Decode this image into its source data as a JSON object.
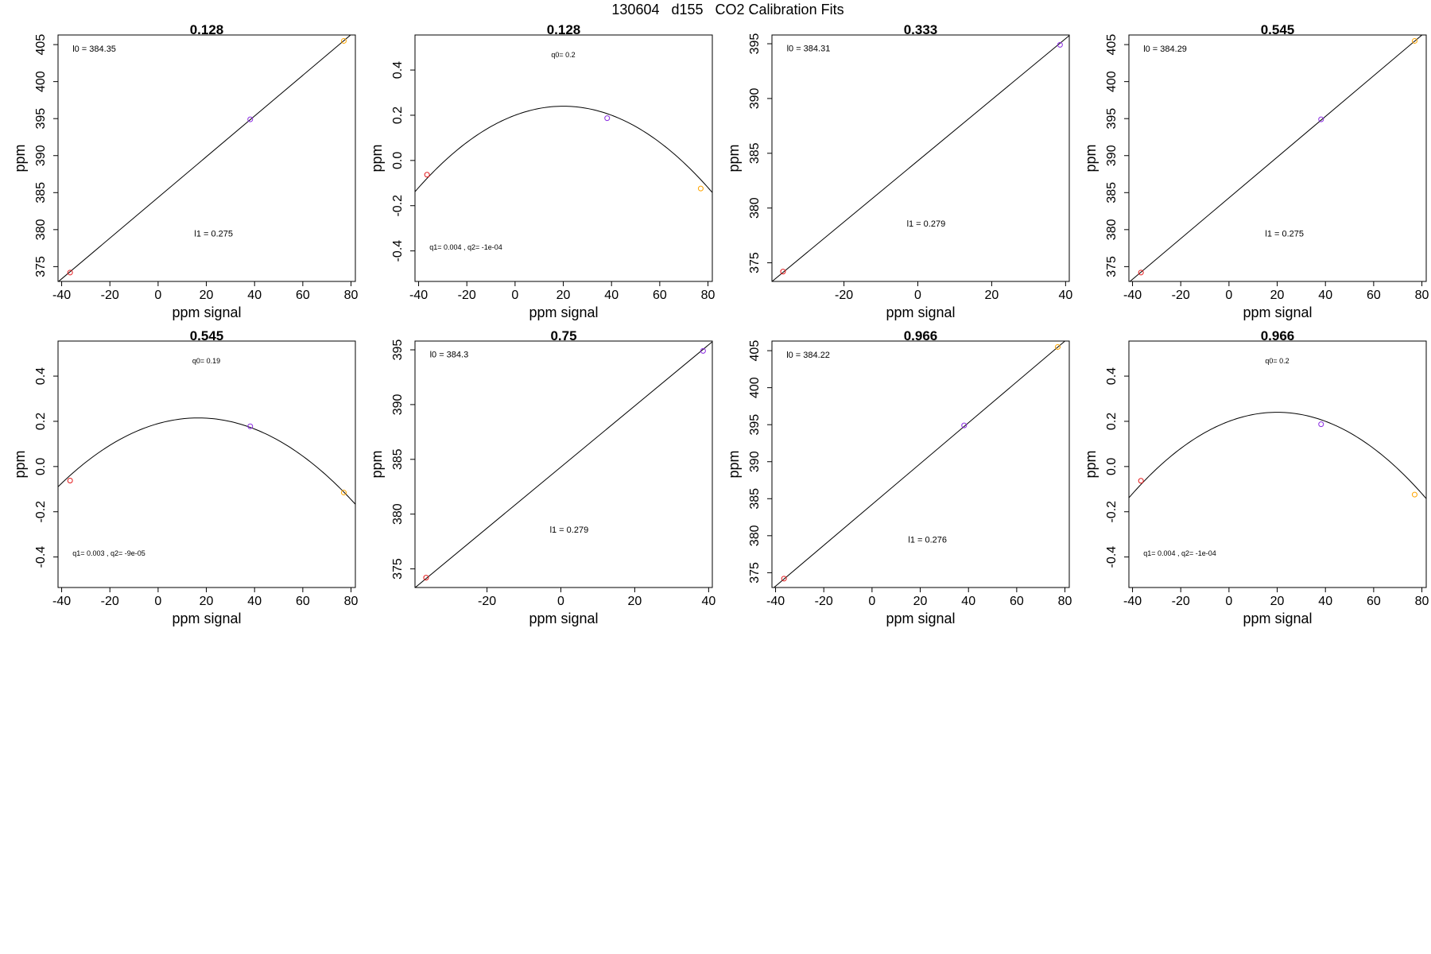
{
  "figure": {
    "title": "130604   d155   CO2 Calibration Fits"
  },
  "chart_data": [
    {
      "type": "scatter",
      "fit": "linear",
      "title": "0.128",
      "xlabel": "ppm signal",
      "ylabel": "ppm",
      "xlim": [
        -41.5,
        81.8
      ],
      "ylim": [
        373.0,
        406.3
      ],
      "xticks": [
        -40,
        -20,
        0,
        20,
        40,
        60,
        80
      ],
      "yticks": [
        375,
        380,
        385,
        390,
        395,
        400,
        405
      ],
      "points": [
        {
          "x": -36.5,
          "y": 374.2,
          "color": "#e41a1c"
        },
        {
          "x": 38.2,
          "y": 394.9,
          "color": "#8a2be2"
        },
        {
          "x": 77.0,
          "y": 405.5,
          "color": "#ffa500"
        }
      ],
      "line": {
        "intercept": 384.35,
        "slope": 0.275
      },
      "annotations": [
        {
          "text": "l0 =  384.35",
          "x": -35.5,
          "y": 404.5,
          "size": "small"
        },
        {
          "text": "l1 =  0.275",
          "x": 15,
          "y": 379.5,
          "size": "small"
        }
      ]
    },
    {
      "type": "scatter",
      "fit": "quadratic",
      "title": "0.128",
      "xlabel": "ppm signal",
      "ylabel": "ppm",
      "xlim": [
        -41.5,
        81.8
      ],
      "ylim": [
        -0.535,
        0.555
      ],
      "xticks": [
        -40,
        -20,
        0,
        20,
        40,
        60,
        80
      ],
      "yticks": [
        -0.4,
        -0.2,
        0.0,
        0.2,
        0.4
      ],
      "points": [
        {
          "x": -36.5,
          "y": -0.063,
          "color": "#e41a1c"
        },
        {
          "x": 38.2,
          "y": 0.187,
          "color": "#8a2be2"
        },
        {
          "x": 77.0,
          "y": -0.124,
          "color": "#ffa500"
        }
      ],
      "curve": {
        "q0": 0.2,
        "q1": 0.004,
        "q2": -0.0001
      },
      "annotations": [
        {
          "text": "q0= 0.2",
          "x": 20,
          "y": 0.47,
          "size": "tiny"
        },
        {
          "text": "q1= 0.004 , q2= -1e-04",
          "x": -35.5,
          "y": -0.38,
          "size": "tiny"
        }
      ]
    },
    {
      "type": "scatter",
      "fit": "linear",
      "title": "0.333",
      "xlabel": "ppm signal",
      "ylabel": "ppm",
      "xlim": [
        -39.5,
        41.0
      ],
      "ylim": [
        373.3,
        395.8
      ],
      "xticks": [
        -20,
        0,
        20,
        40
      ],
      "yticks": [
        375,
        380,
        385,
        390,
        395
      ],
      "points": [
        {
          "x": -36.5,
          "y": 374.2,
          "color": "#e41a1c"
        },
        {
          "x": 38.5,
          "y": 394.9,
          "color": "#8a2be2"
        }
      ],
      "line": {
        "intercept": 384.31,
        "slope": 0.279
      },
      "annotations": [
        {
          "text": "l0 =  384.31",
          "x": -35.5,
          "y": 394.6,
          "size": "small"
        },
        {
          "text": "l1 =  0.279",
          "x": -3,
          "y": 378.6,
          "size": "small"
        }
      ]
    },
    {
      "type": "scatter",
      "fit": "linear",
      "title": "0.545",
      "xlabel": "ppm signal",
      "ylabel": "ppm",
      "xlim": [
        -41.5,
        81.8
      ],
      "ylim": [
        373.0,
        406.3
      ],
      "xticks": [
        -40,
        -20,
        0,
        20,
        40,
        60,
        80
      ],
      "yticks": [
        375,
        380,
        385,
        390,
        395,
        400,
        405
      ],
      "points": [
        {
          "x": -36.5,
          "y": 374.2,
          "color": "#e41a1c"
        },
        {
          "x": 38.2,
          "y": 394.9,
          "color": "#8a2be2"
        },
        {
          "x": 77.0,
          "y": 405.5,
          "color": "#ffa500"
        }
      ],
      "line": {
        "intercept": 384.29,
        "slope": 0.275
      },
      "annotations": [
        {
          "text": "l0 =  384.29",
          "x": -35.5,
          "y": 404.5,
          "size": "small"
        },
        {
          "text": "l1 =  0.275",
          "x": 15,
          "y": 379.5,
          "size": "small"
        }
      ]
    },
    {
      "type": "scatter",
      "fit": "quadratic",
      "title": "0.545",
      "xlabel": "ppm signal",
      "ylabel": "ppm",
      "xlim": [
        -41.5,
        81.8
      ],
      "ylim": [
        -0.535,
        0.555
      ],
      "xticks": [
        -40,
        -20,
        0,
        20,
        40,
        60,
        80
      ],
      "yticks": [
        -0.4,
        -0.2,
        0.0,
        0.2,
        0.4
      ],
      "points": [
        {
          "x": -36.5,
          "y": -0.062,
          "color": "#e41a1c"
        },
        {
          "x": 38.2,
          "y": 0.178,
          "color": "#8a2be2"
        },
        {
          "x": 77.0,
          "y": -0.115,
          "color": "#ffa500"
        }
      ],
      "curve": {
        "q0": 0.19,
        "q1": 0.003,
        "q2": -9e-05
      },
      "annotations": [
        {
          "text": "q0= 0.19",
          "x": 20,
          "y": 0.47,
          "size": "tiny"
        },
        {
          "text": "q1= 0.003 , q2= -9e-05",
          "x": -35.5,
          "y": -0.38,
          "size": "tiny"
        }
      ]
    },
    {
      "type": "scatter",
      "fit": "linear",
      "title": "0.75",
      "xlabel": "ppm signal",
      "ylabel": "ppm",
      "xlim": [
        -39.5,
        41.0
      ],
      "ylim": [
        373.3,
        395.8
      ],
      "xticks": [
        -20,
        0,
        20,
        40
      ],
      "yticks": [
        375,
        380,
        385,
        390,
        395
      ],
      "points": [
        {
          "x": -36.5,
          "y": 374.2,
          "color": "#e41a1c"
        },
        {
          "x": 38.5,
          "y": 394.9,
          "color": "#8a2be2"
        }
      ],
      "line": {
        "intercept": 384.3,
        "slope": 0.279
      },
      "annotations": [
        {
          "text": "l0 =  384.3",
          "x": -35.5,
          "y": 394.6,
          "size": "small"
        },
        {
          "text": "l1 =  0.279",
          "x": -3,
          "y": 378.6,
          "size": "small"
        }
      ]
    },
    {
      "type": "scatter",
      "fit": "linear",
      "title": "0.966",
      "xlabel": "ppm signal",
      "ylabel": "ppm",
      "xlim": [
        -41.5,
        81.8
      ],
      "ylim": [
        373.0,
        406.3
      ],
      "xticks": [
        -40,
        -20,
        0,
        20,
        40,
        60,
        80
      ],
      "yticks": [
        375,
        380,
        385,
        390,
        395,
        400,
        405
      ],
      "points": [
        {
          "x": -36.5,
          "y": 374.2,
          "color": "#e41a1c"
        },
        {
          "x": 38.2,
          "y": 394.9,
          "color": "#8a2be2"
        },
        {
          "x": 77.0,
          "y": 405.5,
          "color": "#ffa500"
        }
      ],
      "line": {
        "intercept": 384.22,
        "slope": 0.276
      },
      "annotations": [
        {
          "text": "l0 =  384.22",
          "x": -35.5,
          "y": 404.5,
          "size": "small"
        },
        {
          "text": "l1 =  0.276",
          "x": 15,
          "y": 379.5,
          "size": "small"
        }
      ]
    },
    {
      "type": "scatter",
      "fit": "quadratic",
      "title": "0.966",
      "xlabel": "ppm signal",
      "ylabel": "ppm",
      "xlim": [
        -41.5,
        81.8
      ],
      "ylim": [
        -0.535,
        0.555
      ],
      "xticks": [
        -40,
        -20,
        0,
        20,
        40,
        60,
        80
      ],
      "yticks": [
        -0.4,
        -0.2,
        0.0,
        0.2,
        0.4
      ],
      "points": [
        {
          "x": -36.5,
          "y": -0.063,
          "color": "#e41a1c"
        },
        {
          "x": 38.2,
          "y": 0.187,
          "color": "#8a2be2"
        },
        {
          "x": 77.0,
          "y": -0.124,
          "color": "#ffa500"
        }
      ],
      "curve": {
        "q0": 0.2,
        "q1": 0.004,
        "q2": -0.0001
      },
      "annotations": [
        {
          "text": "q0= 0.2",
          "x": 20,
          "y": 0.47,
          "size": "tiny"
        },
        {
          "text": "q1= 0.004 , q2= -1e-04",
          "x": -35.5,
          "y": -0.38,
          "size": "tiny"
        }
      ]
    }
  ]
}
